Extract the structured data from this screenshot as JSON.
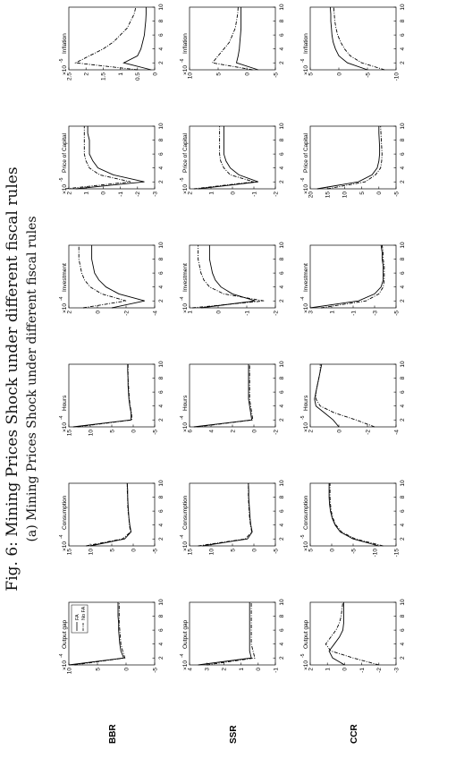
{
  "figure": {
    "title": "Fig. 6: Mining Prices Shock under different fiscal rules",
    "subtitle": "(a) Mining Prices Shock under different fiscal rules"
  },
  "legend": {
    "location": "top-right of Output gap (BBR) panel",
    "entries": [
      {
        "label": "FA",
        "style": "solid"
      },
      {
        "label": "No FA",
        "style": "dash-dot"
      }
    ]
  },
  "chart_data": [
    {
      "type": "line",
      "row": "BBR",
      "title": "Output gap",
      "multiplier": "×10",
      "exponent": "-4",
      "x": [
        1,
        2,
        3,
        4,
        5,
        6,
        7,
        8,
        9,
        10
      ],
      "xlim": [
        1,
        10
      ],
      "ylim": [
        -5,
        10
      ],
      "yticks": [
        -5,
        0,
        5,
        10
      ],
      "series": [
        {
          "name": "FA",
          "values": [
            10,
            0.4,
            0.9,
            1.1,
            1.2,
            1.3,
            1.3,
            1.4,
            1.4,
            1.4
          ]
        },
        {
          "name": "No FA",
          "values": [
            9,
            0.2,
            0.6,
            0.9,
            1.0,
            1.1,
            1.2,
            1.2,
            1.2,
            1.2
          ]
        }
      ]
    },
    {
      "type": "line",
      "row": "BBR",
      "title": "Consumption",
      "multiplier": "×10",
      "exponent": "-4",
      "x": [
        1,
        2,
        3,
        4,
        5,
        6,
        7,
        8,
        9,
        10
      ],
      "xlim": [
        1,
        10
      ],
      "ylim": [
        -5,
        15
      ],
      "yticks": [
        -5,
        0,
        5,
        10,
        15
      ],
      "series": [
        {
          "name": "FA",
          "values": [
            10,
            2,
            0.5,
            0.8,
            1.0,
            1.1,
            1.2,
            1.3,
            1.3,
            1.4
          ]
        },
        {
          "name": "No FA",
          "values": [
            11,
            2.5,
            0.6,
            0.9,
            1.0,
            1.2,
            1.3,
            1.3,
            1.4,
            1.4
          ]
        }
      ]
    },
    {
      "type": "line",
      "row": "BBR",
      "title": "Hours",
      "multiplier": "×10",
      "exponent": "-4",
      "x": [
        1,
        2,
        3,
        4,
        5,
        6,
        7,
        8,
        9,
        10
      ],
      "xlim": [
        1,
        10
      ],
      "ylim": [
        -5,
        15
      ],
      "yticks": [
        -5,
        0,
        5,
        10,
        15
      ],
      "series": [
        {
          "name": "FA",
          "values": [
            14,
            0.5,
            0.5,
            0.8,
            1.0,
            1.1,
            1.2,
            1.2,
            1.3,
            1.3
          ]
        },
        {
          "name": "No FA",
          "values": [
            13,
            0.3,
            0.4,
            0.7,
            0.9,
            1.0,
            1.1,
            1.2,
            1.2,
            1.2
          ]
        }
      ]
    },
    {
      "type": "line",
      "row": "BBR",
      "title": "Investment",
      "multiplier": "×10",
      "exponent": "-4",
      "x": [
        1,
        2,
        3,
        4,
        5,
        6,
        7,
        8,
        9,
        10
      ],
      "xlim": [
        1,
        10
      ],
      "ylim": [
        -4,
        2
      ],
      "yticks": [
        -4,
        -2,
        0,
        2
      ],
      "series": [
        {
          "name": "FA",
          "values": [
            -1,
            -3.3,
            -1.5,
            -0.6,
            -0.1,
            0.2,
            0.3,
            0.4,
            0.4,
            0.4
          ]
        },
        {
          "name": "No FA",
          "values": [
            1,
            -2.0,
            -0.3,
            0.5,
            0.9,
            1.1,
            1.2,
            1.3,
            1.3,
            1.3
          ]
        }
      ]
    },
    {
      "type": "line",
      "row": "BBR",
      "title": "Price of Capital",
      "multiplier": "×10",
      "exponent": "-5",
      "x": [
        1,
        2,
        3,
        4,
        5,
        6,
        7,
        8,
        9,
        10
      ],
      "xlim": [
        1,
        10
      ],
      "ylim": [
        -3,
        2
      ],
      "yticks": [
        -3,
        -2,
        -1,
        0,
        1,
        2
      ],
      "series": [
        {
          "name": "FA",
          "values": [
            1.6,
            -2.4,
            -0.6,
            0.3,
            0.6,
            0.8,
            0.8,
            0.8,
            0.9,
            0.9
          ]
        },
        {
          "name": "No FA",
          "values": [
            2.2,
            -1.6,
            0.2,
            0.8,
            1.0,
            1.1,
            1.1,
            1.1,
            1.1,
            1.1
          ]
        }
      ]
    },
    {
      "type": "line",
      "row": "BBR",
      "title": "Inflation",
      "multiplier": "×10",
      "exponent": "-5",
      "x": [
        1,
        2,
        3,
        4,
        5,
        6,
        7,
        8,
        9,
        10
      ],
      "xlim": [
        1,
        10
      ],
      "ylim": [
        0,
        2.5
      ],
      "yticks": [
        0,
        0.5,
        1,
        1.5,
        2,
        2.5
      ],
      "series": [
        {
          "name": "FA",
          "values": [
            0.1,
            0.9,
            0.5,
            0.4,
            0.35,
            0.3,
            0.28,
            0.26,
            0.25,
            0.25
          ]
        },
        {
          "name": "No FA",
          "values": [
            0.5,
            2.3,
            1.9,
            1.5,
            1.2,
            1.0,
            0.8,
            0.7,
            0.6,
            0.55
          ]
        }
      ]
    },
    {
      "type": "line",
      "row": "SSR",
      "title": "Output gap",
      "multiplier": "×10",
      "exponent": "-4",
      "x": [
        1,
        2,
        3,
        4,
        5,
        6,
        7,
        8,
        9,
        10
      ],
      "xlim": [
        1,
        10
      ],
      "ylim": [
        -1,
        4
      ],
      "yticks": [
        -1,
        0,
        1,
        2,
        3,
        4
      ],
      "series": [
        {
          "name": "FA",
          "values": [
            3.5,
            0.4,
            0.5,
            0.5,
            0.5,
            0.5,
            0.5,
            0.5,
            0.5,
            0.5
          ]
        },
        {
          "name": "No FA",
          "values": [
            3.0,
            0.2,
            0.3,
            0.4,
            0.4,
            0.4,
            0.4,
            0.4,
            0.4,
            0.4
          ]
        }
      ]
    },
    {
      "type": "line",
      "row": "SSR",
      "title": "Consumption",
      "multiplier": "×10",
      "exponent": "-4",
      "x": [
        1,
        2,
        3,
        4,
        5,
        6,
        7,
        8,
        9,
        10
      ],
      "xlim": [
        1,
        10
      ],
      "ylim": [
        -5,
        15
      ],
      "yticks": [
        -5,
        0,
        5,
        10,
        15
      ],
      "series": [
        {
          "name": "FA",
          "values": [
            12,
            1.5,
            0.4,
            0.7,
            0.9,
            1.0,
            1.1,
            1.2,
            1.2,
            1.3
          ]
        },
        {
          "name": "No FA",
          "values": [
            13,
            2.0,
            0.5,
            0.8,
            1.0,
            1.1,
            1.2,
            1.3,
            1.3,
            1.3
          ]
        }
      ]
    },
    {
      "type": "line",
      "row": "SSR",
      "title": "Hours",
      "multiplier": "×10",
      "exponent": "-4",
      "x": [
        1,
        2,
        3,
        4,
        5,
        6,
        7,
        8,
        9,
        10
      ],
      "xlim": [
        1,
        10
      ],
      "ylim": [
        -2,
        6
      ],
      "yticks": [
        -2,
        0,
        2,
        4,
        6
      ],
      "series": [
        {
          "name": "FA",
          "values": [
            5.6,
            0.2,
            0.3,
            0.4,
            0.5,
            0.5,
            0.5,
            0.5,
            0.5,
            0.5
          ]
        },
        {
          "name": "No FA",
          "values": [
            5.3,
            0.1,
            0.2,
            0.3,
            0.4,
            0.4,
            0.4,
            0.4,
            0.4,
            0.4
          ]
        }
      ]
    },
    {
      "type": "line",
      "row": "SSR",
      "title": "Investment",
      "multiplier": "×10",
      "exponent": "-4",
      "x": [
        1,
        2,
        3,
        4,
        5,
        6,
        7,
        8,
        9,
        10
      ],
      "xlim": [
        1,
        10
      ],
      "ylim": [
        -2,
        1
      ],
      "yticks": [
        -2,
        -1,
        0,
        1
      ],
      "series": [
        {
          "name": "FA",
          "values": [
            0.6,
            -1.3,
            -0.5,
            -0.1,
            0.1,
            0.2,
            0.25,
            0.3,
            0.3,
            0.3
          ]
        },
        {
          "name": "No FA",
          "values": [
            0.9,
            -1.6,
            -0.2,
            0.3,
            0.5,
            0.6,
            0.65,
            0.7,
            0.7,
            0.7
          ]
        }
      ]
    },
    {
      "type": "line",
      "row": "SSR",
      "title": "Price of Capital",
      "multiplier": "×10",
      "exponent": "-5",
      "x": [
        1,
        2,
        3,
        4,
        5,
        6,
        7,
        8,
        9,
        10
      ],
      "xlim": [
        1,
        10
      ],
      "ylim": [
        -2,
        2
      ],
      "yticks": [
        -2,
        -1,
        0,
        1,
        2
      ],
      "series": [
        {
          "name": "FA",
          "values": [
            1.6,
            -1.2,
            -0.3,
            0.1,
            0.3,
            0.4,
            0.4,
            0.4,
            0.4,
            0.4
          ]
        },
        {
          "name": "No FA",
          "values": [
            1.8,
            -1.0,
            0.1,
            0.4,
            0.55,
            0.6,
            0.6,
            0.6,
            0.6,
            0.6
          ]
        }
      ]
    },
    {
      "type": "line",
      "row": "SSR",
      "title": "Inflation",
      "multiplier": "×10",
      "exponent": "-6",
      "x": [
        1,
        2,
        3,
        4,
        5,
        6,
        7,
        8,
        9,
        10
      ],
      "xlim": [
        1,
        10
      ],
      "ylim": [
        -5,
        10
      ],
      "yticks": [
        -5,
        0,
        5,
        10
      ],
      "series": [
        {
          "name": "FA",
          "values": [
            -2,
            1.8,
            1.5,
            1.3,
            1.2,
            1.1,
            1.0,
            1.0,
            1.0,
            1.0
          ]
        },
        {
          "name": "No FA",
          "values": [
            -1,
            6.0,
            5.0,
            4.0,
            3.0,
            2.5,
            2.0,
            1.8,
            1.6,
            1.5
          ]
        }
      ]
    },
    {
      "type": "line",
      "row": "CCR",
      "title": "Output gap",
      "multiplier": "×10",
      "exponent": "-5",
      "x": [
        1,
        2,
        3,
        4,
        5,
        6,
        7,
        8,
        9,
        10
      ],
      "xlim": [
        1,
        10
      ],
      "ylim": [
        -3,
        2
      ],
      "yticks": [
        -3,
        -2,
        -1,
        0,
        1,
        2
      ],
      "series": [
        {
          "name": "FA",
          "values": [
            0,
            0.7,
            0.9,
            0.6,
            0.3,
            0.1,
            0.05,
            0.05,
            0.05,
            0.05
          ]
        },
        {
          "name": "No FA",
          "values": [
            -2,
            -0.5,
            0.8,
            1.1,
            0.8,
            0.5,
            0.3,
            0.2,
            0.15,
            0.1
          ]
        }
      ]
    },
    {
      "type": "line",
      "row": "CCR",
      "title": "Consumption",
      "multiplier": "×10",
      "exponent": "-5",
      "x": [
        1,
        2,
        3,
        4,
        5,
        6,
        7,
        8,
        9,
        10
      ],
      "xlim": [
        1,
        10
      ],
      "ylim": [
        -15,
        5
      ],
      "yticks": [
        -15,
        -10,
        -5,
        0,
        5
      ],
      "series": [
        {
          "name": "FA",
          "values": [
            -11,
            -5,
            -2,
            -0.8,
            -0.1,
            0.3,
            0.5,
            0.6,
            0.6,
            0.6
          ]
        },
        {
          "name": "No FA",
          "values": [
            -12,
            -5.5,
            -2.3,
            -1,
            -0.3,
            0.1,
            0.3,
            0.4,
            0.4,
            0.4
          ]
        }
      ]
    },
    {
      "type": "line",
      "row": "CCR",
      "title": "Hours",
      "multiplier": "×10",
      "exponent": "-5",
      "x": [
        1,
        2,
        3,
        4,
        5,
        6,
        7,
        8,
        9,
        10
      ],
      "xlim": [
        1,
        10
      ],
      "ylim": [
        -4,
        2
      ],
      "yticks": [
        -4,
        -2,
        0,
        2
      ],
      "series": [
        {
          "name": "FA",
          "values": [
            0,
            0.4,
            1.0,
            1.6,
            1.7,
            1.6,
            1.5,
            1.4,
            1.3,
            1.2
          ]
        },
        {
          "name": "No FA",
          "values": [
            -2.5,
            -1.2,
            0.3,
            1.3,
            1.6,
            1.6,
            1.5,
            1.4,
            1.3,
            1.3
          ]
        }
      ]
    },
    {
      "type": "line",
      "row": "CCR",
      "title": "Investment",
      "multiplier": "×10",
      "exponent": "-4",
      "x": [
        1,
        2,
        3,
        4,
        5,
        6,
        7,
        8,
        9,
        10
      ],
      "xlim": [
        1,
        10
      ],
      "ylim": [
        -5,
        3
      ],
      "yticks": [
        -5,
        -3,
        -1,
        1,
        3
      ],
      "series": [
        {
          "name": "FA",
          "values": [
            3,
            -1.5,
            -3,
            -3.6,
            -3.8,
            -3.8,
            -3.8,
            -3.7,
            -3.7,
            -3.6
          ]
        },
        {
          "name": "No FA",
          "values": [
            2,
            -2.2,
            -3.4,
            -3.8,
            -3.9,
            -3.9,
            -3.9,
            -3.8,
            -3.8,
            -3.7
          ]
        }
      ]
    },
    {
      "type": "line",
      "row": "CCR",
      "title": "Price of Capital",
      "multiplier": "×10",
      "exponent": "-6",
      "x": [
        1,
        2,
        3,
        4,
        5,
        6,
        7,
        8,
        9,
        10
      ],
      "xlim": [
        1,
        10
      ],
      "ylim": [
        -5,
        20
      ],
      "yticks": [
        -5,
        0,
        5,
        10,
        15,
        20
      ],
      "series": [
        {
          "name": "FA",
          "values": [
            18,
            6,
            2,
            0.5,
            0,
            -0.2,
            -0.2,
            -0.1,
            0,
            0
          ]
        },
        {
          "name": "No FA",
          "values": [
            15,
            4,
            1,
            -0.5,
            -0.8,
            -0.9,
            -0.8,
            -0.7,
            -0.6,
            -0.5
          ]
        }
      ]
    },
    {
      "type": "line",
      "row": "CCR",
      "title": "Inflation",
      "multiplier": "×10",
      "exponent": "-6",
      "x": [
        1,
        2,
        3,
        4,
        5,
        6,
        7,
        8,
        9,
        10
      ],
      "xlim": [
        1,
        10
      ],
      "ylim": [
        -10,
        5
      ],
      "yticks": [
        -10,
        -5,
        0,
        5
      ],
      "series": [
        {
          "name": "FA",
          "values": [
            -5,
            -1.5,
            0,
            0.6,
            1.0,
            1.2,
            1.3,
            1.4,
            1.4,
            1.5
          ]
        },
        {
          "name": "No FA",
          "values": [
            -8,
            -4,
            -2,
            -1,
            -0.3,
            0.2,
            0.5,
            0.7,
            0.8,
            0.9
          ]
        }
      ]
    }
  ],
  "rows": [
    "BBR",
    "SSR",
    "CCR"
  ]
}
